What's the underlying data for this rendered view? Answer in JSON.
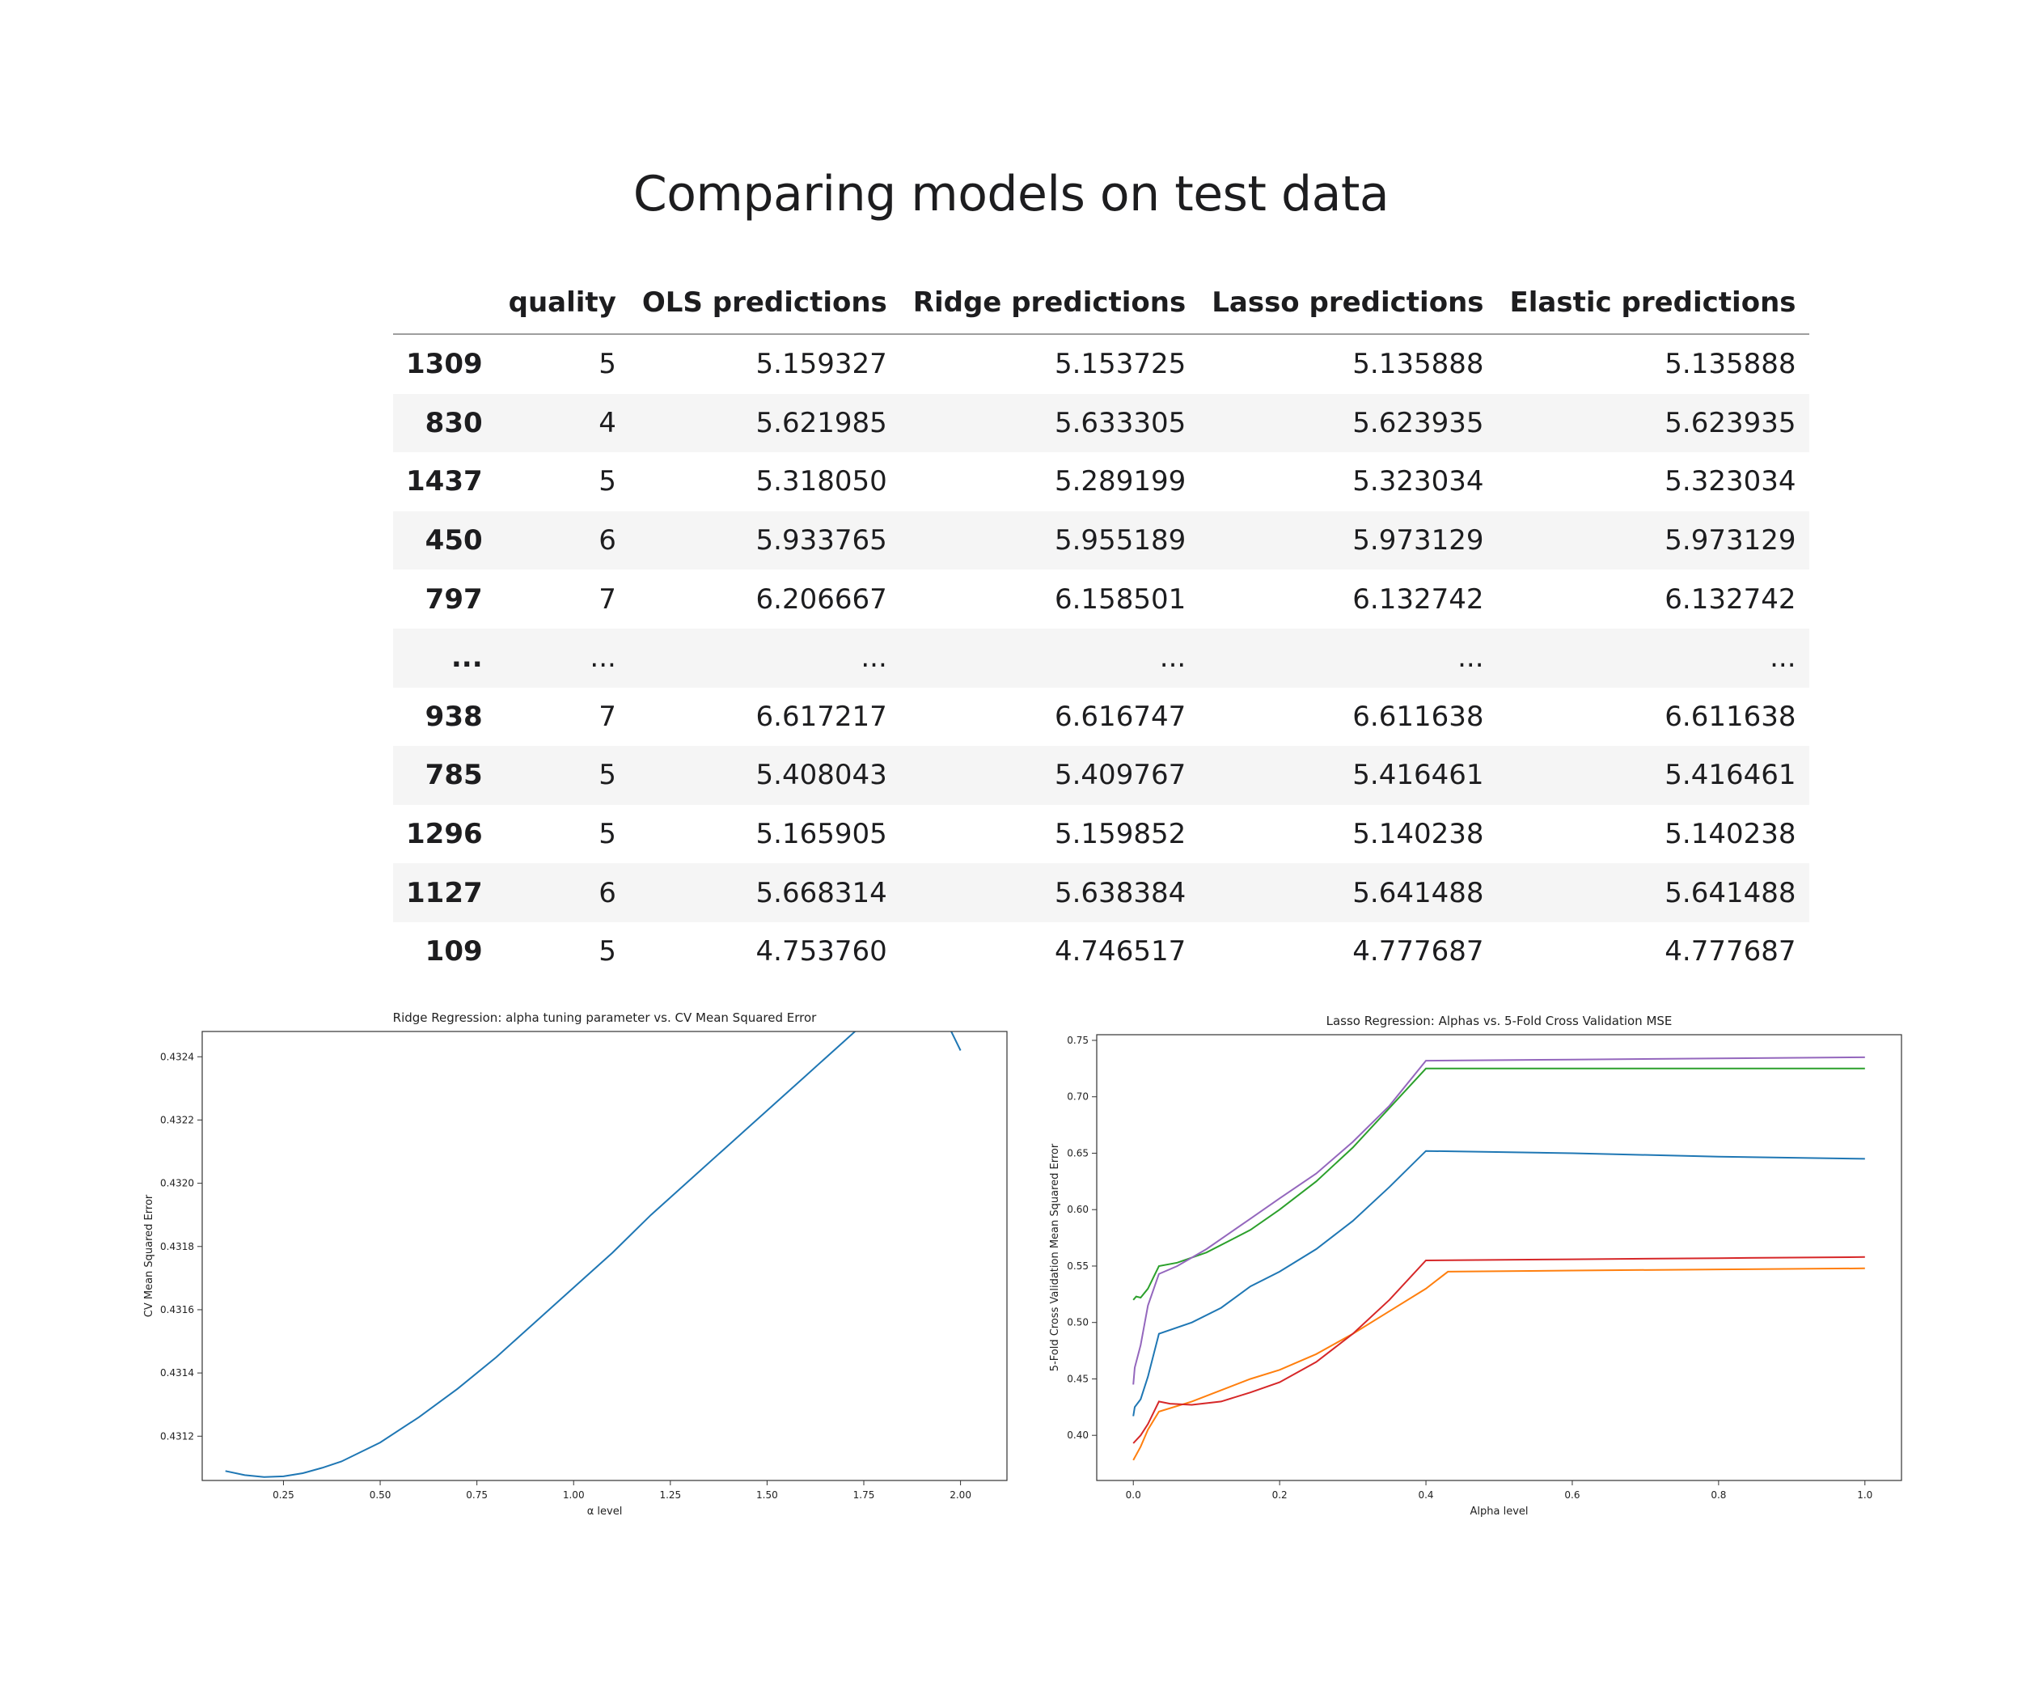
{
  "slide": {
    "title": "Comparing models on test data"
  },
  "table": {
    "columns": [
      "",
      "quality",
      "OLS predictions",
      "Ridge predictions",
      "Lasso predictions",
      "Elastic predictions"
    ],
    "rows": [
      [
        "1309",
        "5",
        "5.159327",
        "5.153725",
        "5.135888",
        "5.135888"
      ],
      [
        "830",
        "4",
        "5.621985",
        "5.633305",
        "5.623935",
        "5.623935"
      ],
      [
        "1437",
        "5",
        "5.318050",
        "5.289199",
        "5.323034",
        "5.323034"
      ],
      [
        "450",
        "6",
        "5.933765",
        "5.955189",
        "5.973129",
        "5.973129"
      ],
      [
        "797",
        "7",
        "6.206667",
        "6.158501",
        "6.132742",
        "6.132742"
      ],
      [
        "...",
        "...",
        "...",
        "...",
        "...",
        "..."
      ],
      [
        "938",
        "7",
        "6.617217",
        "6.616747",
        "6.611638",
        "6.611638"
      ],
      [
        "785",
        "5",
        "5.408043",
        "5.409767",
        "5.416461",
        "5.416461"
      ],
      [
        "1296",
        "5",
        "5.165905",
        "5.159852",
        "5.140238",
        "5.140238"
      ],
      [
        "1127",
        "6",
        "5.668314",
        "5.638384",
        "5.641488",
        "5.641488"
      ],
      [
        "109",
        "5",
        "4.753760",
        "4.746517",
        "4.777687",
        "4.777687"
      ]
    ]
  },
  "chart_data": [
    {
      "id": "ridge",
      "type": "line",
      "title": "Ridge Regression: alpha tuning parameter vs. CV Mean Squared Error",
      "xlabel": "α level",
      "ylabel": "CV Mean Squared Error",
      "xlim": [
        0.04,
        2.12
      ],
      "ylim": [
        0.43106,
        0.43248
      ],
      "xticks": [
        0.25,
        0.5,
        0.75,
        1.0,
        1.25,
        1.5,
        1.75,
        2.0
      ],
      "xtick_labels": [
        "0.25",
        "0.50",
        "0.75",
        "1.00",
        "1.25",
        "1.50",
        "1.75",
        "2.00"
      ],
      "yticks": [
        0.4312,
        0.4314,
        0.4316,
        0.4318,
        0.432,
        0.4322,
        0.4324
      ],
      "ytick_labels": [
        "0.4312",
        "0.4314",
        "0.4316",
        "0.4318",
        "0.4320",
        "0.4322",
        "0.4324"
      ],
      "grid": false,
      "series": [
        {
          "color": "#1f77b4",
          "x": [
            0.1,
            0.15,
            0.2,
            0.25,
            0.3,
            0.35,
            0.4,
            0.5,
            0.6,
            0.7,
            0.8,
            0.9,
            1.0,
            1.1,
            1.2,
            1.3,
            1.4,
            1.5,
            1.6,
            1.7,
            1.8,
            1.9,
            2.0
          ],
          "y": [
            0.43109,
            0.431077,
            0.431071,
            0.431073,
            0.431083,
            0.4311,
            0.43112,
            0.43118,
            0.43126,
            0.43135,
            0.43145,
            0.43156,
            0.43167,
            0.43178,
            0.4319,
            0.43201,
            0.43212,
            0.43223,
            0.43234,
            0.43245,
            0.43256,
            0.43267,
            0.43242
          ]
        }
      ]
    },
    {
      "id": "lasso",
      "type": "line",
      "title": "Lasso Regression: Alphas vs. 5-Fold Cross Validation MSE",
      "xlabel": "Alpha level",
      "ylabel": "5-Fold Cross Validation Mean Squared Error",
      "xlim": [
        -0.05,
        1.05
      ],
      "ylim": [
        0.36,
        0.755
      ],
      "xticks": [
        0.0,
        0.2,
        0.4,
        0.6,
        0.8,
        1.0
      ],
      "xtick_labels": [
        "0.0",
        "0.2",
        "0.4",
        "0.6",
        "0.8",
        "1.0"
      ],
      "yticks": [
        0.4,
        0.45,
        0.5,
        0.55,
        0.6,
        0.65,
        0.7,
        0.75
      ],
      "ytick_labels": [
        "0.40",
        "0.45",
        "0.50",
        "0.55",
        "0.60",
        "0.65",
        "0.70",
        "0.75"
      ],
      "grid": false,
      "series": [
        {
          "color": "#1f77b4",
          "x": [
            0.0,
            0.002,
            0.01,
            0.02,
            0.035,
            0.08,
            0.12,
            0.16,
            0.2,
            0.25,
            0.3,
            0.35,
            0.4,
            0.6,
            0.8,
            1.0
          ],
          "y": [
            0.417,
            0.425,
            0.432,
            0.452,
            0.49,
            0.5,
            0.513,
            0.532,
            0.545,
            0.565,
            0.59,
            0.62,
            0.652,
            0.65,
            0.647,
            0.645
          ]
        },
        {
          "color": "#ff7f0e",
          "x": [
            0.0,
            0.01,
            0.02,
            0.035,
            0.08,
            0.12,
            0.16,
            0.2,
            0.25,
            0.3,
            0.35,
            0.4,
            0.43,
            0.6,
            0.8,
            1.0
          ],
          "y": [
            0.378,
            0.39,
            0.405,
            0.421,
            0.43,
            0.44,
            0.45,
            0.458,
            0.472,
            0.49,
            0.51,
            0.53,
            0.545,
            0.546,
            0.547,
            0.548
          ]
        },
        {
          "color": "#2ca02c",
          "x": [
            0.0,
            0.004,
            0.01,
            0.02,
            0.035,
            0.06,
            0.1,
            0.16,
            0.2,
            0.25,
            0.3,
            0.35,
            0.4,
            0.6,
            0.8,
            1.0
          ],
          "y": [
            0.52,
            0.523,
            0.522,
            0.53,
            0.55,
            0.553,
            0.562,
            0.582,
            0.6,
            0.625,
            0.655,
            0.69,
            0.725,
            0.725,
            0.725,
            0.725
          ]
        },
        {
          "color": "#d62728",
          "x": [
            0.0,
            0.01,
            0.02,
            0.035,
            0.05,
            0.08,
            0.12,
            0.16,
            0.2,
            0.25,
            0.3,
            0.35,
            0.4,
            0.6,
            0.8,
            1.0
          ],
          "y": [
            0.393,
            0.4,
            0.41,
            0.43,
            0.428,
            0.427,
            0.43,
            0.438,
            0.447,
            0.465,
            0.49,
            0.52,
            0.555,
            0.556,
            0.557,
            0.558
          ]
        },
        {
          "color": "#9467bd",
          "x": [
            0.0,
            0.002,
            0.01,
            0.02,
            0.035,
            0.06,
            0.1,
            0.16,
            0.2,
            0.25,
            0.3,
            0.35,
            0.4,
            0.6,
            0.8,
            1.0
          ],
          "y": [
            0.445,
            0.46,
            0.48,
            0.515,
            0.543,
            0.55,
            0.565,
            0.592,
            0.61,
            0.632,
            0.66,
            0.692,
            0.732,
            0.733,
            0.734,
            0.735
          ]
        }
      ]
    }
  ]
}
